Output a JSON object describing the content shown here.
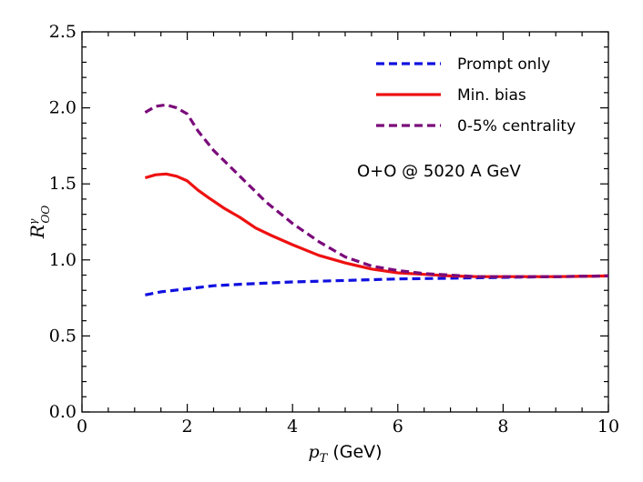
{
  "chart_data": {
    "type": "line",
    "title": "",
    "xlabel_math": "p",
    "xlabel_sub": "T",
    "xlabel_unit": " (GeV)",
    "ylabel_math": "R",
    "ylabel_sub": "OO",
    "ylabel_sup": "γ",
    "xlim": [
      0,
      10
    ],
    "ylim": [
      0,
      2.5
    ],
    "xticks": [
      0,
      2,
      4,
      6,
      8,
      10
    ],
    "yticks": [
      0.0,
      0.5,
      1.0,
      1.5,
      2.0,
      2.5
    ],
    "xtick_labels": [
      "0",
      "2",
      "4",
      "6",
      "8",
      "10"
    ],
    "ytick_labels": [
      "0.0",
      "0.5",
      "1.0",
      "1.5",
      "2.0",
      "2.5"
    ],
    "legend_position": "top-right",
    "annotation": "O+O @ 5020 A GeV",
    "series": [
      {
        "name": "Prompt only",
        "color": "#1010e0",
        "style": "dashed",
        "x": [
          1.2,
          1.5,
          2.0,
          2.5,
          3.0,
          4.0,
          5.0,
          6.0,
          7.0,
          8.0,
          9.0,
          10.0
        ],
        "y": [
          0.77,
          0.79,
          0.81,
          0.83,
          0.84,
          0.855,
          0.865,
          0.875,
          0.88,
          0.885,
          0.89,
          0.895
        ]
      },
      {
        "name": "Min. bias",
        "color": "#ee1111",
        "style": "solid",
        "x": [
          1.2,
          1.4,
          1.6,
          1.8,
          2.0,
          2.2,
          2.4,
          2.7,
          3.0,
          3.3,
          3.6,
          4.0,
          4.5,
          5.0,
          5.5,
          6.0,
          6.5,
          7.0,
          7.5,
          8.0,
          9.0,
          10.0
        ],
        "y": [
          1.54,
          1.56,
          1.565,
          1.55,
          1.52,
          1.46,
          1.41,
          1.34,
          1.28,
          1.21,
          1.16,
          1.1,
          1.03,
          0.98,
          0.94,
          0.915,
          0.905,
          0.895,
          0.89,
          0.89,
          0.89,
          0.895
        ]
      },
      {
        "name": "0-5% centrality",
        "color": "#7a0a7a",
        "style": "dashed",
        "x": [
          1.2,
          1.4,
          1.6,
          1.8,
          2.0,
          2.2,
          2.5,
          3.0,
          3.5,
          4.0,
          4.5,
          5.0,
          5.5,
          6.0,
          6.5,
          7.0,
          7.5,
          8.0,
          9.0,
          10.0
        ],
        "y": [
          1.97,
          2.01,
          2.02,
          2.0,
          1.96,
          1.85,
          1.72,
          1.55,
          1.38,
          1.24,
          1.12,
          1.02,
          0.96,
          0.93,
          0.91,
          0.9,
          0.89,
          0.89,
          0.89,
          0.895
        ]
      }
    ]
  }
}
